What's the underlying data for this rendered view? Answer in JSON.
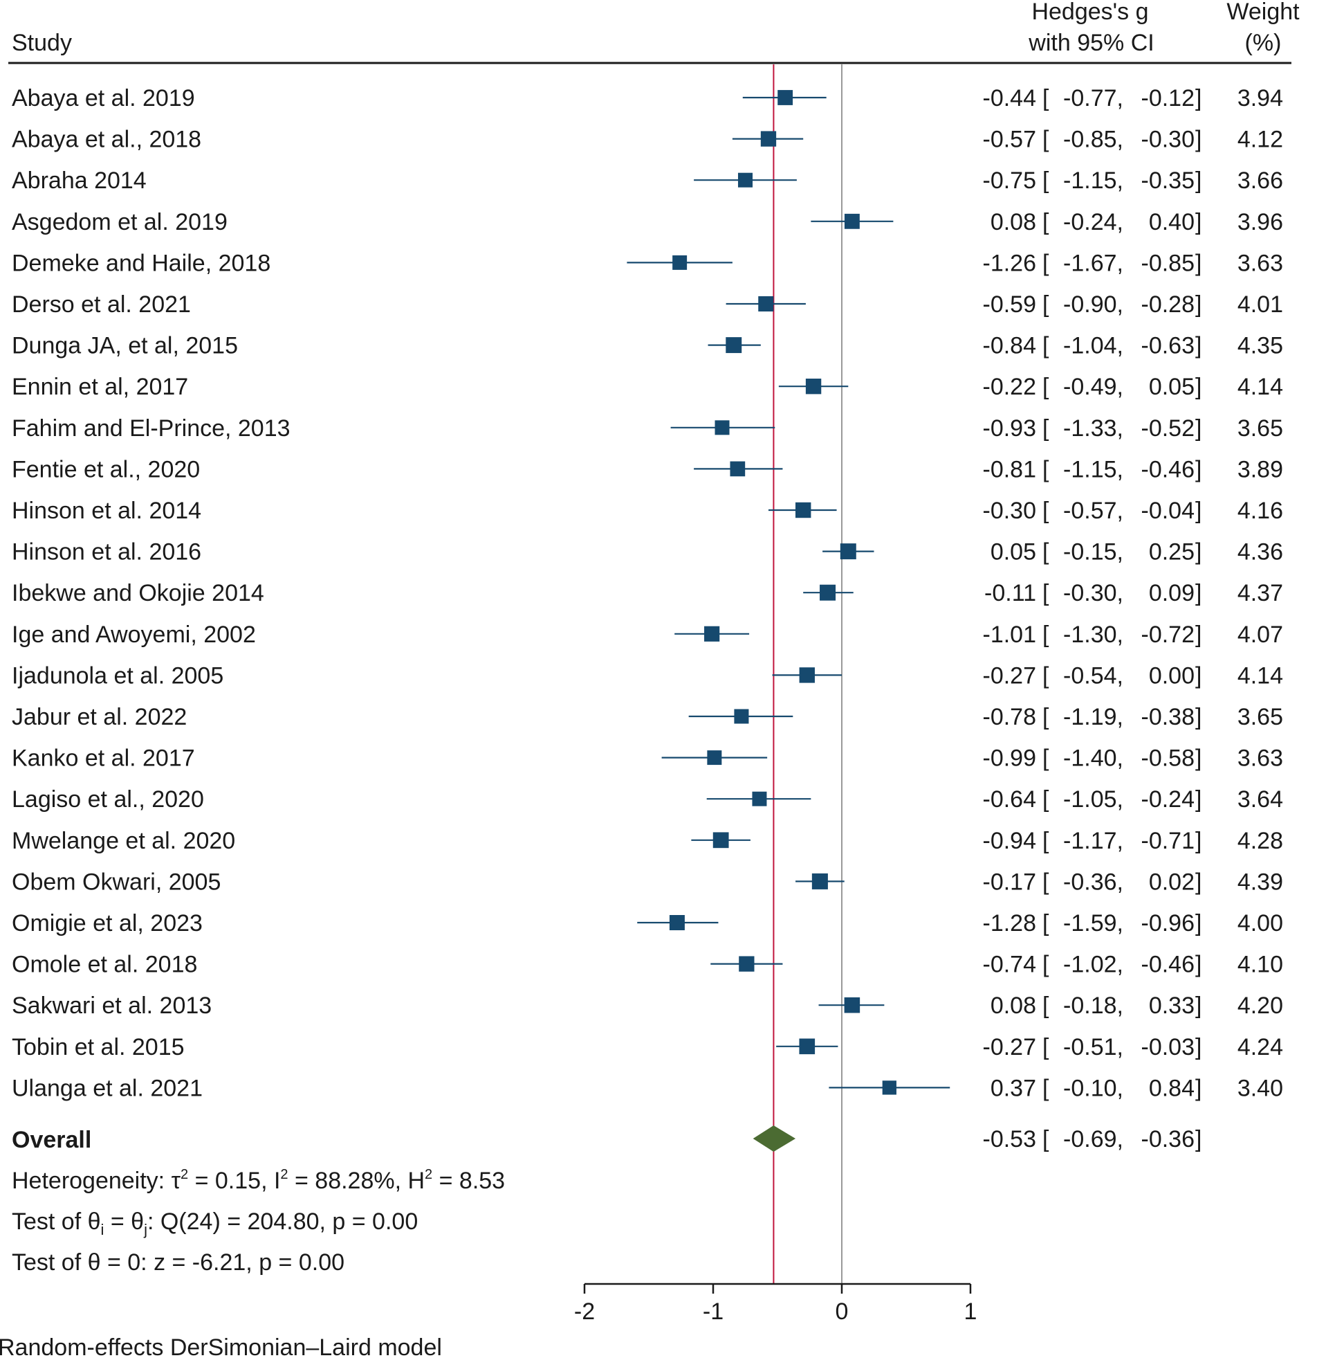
{
  "chart_data": {
    "type": "forest",
    "header": {
      "study": "Study",
      "effect_line1": "Hedges's g",
      "effect_line2": "with 95% CI",
      "weight_line1": "Weight",
      "weight_line2": "(%)"
    },
    "xlim": [
      -2,
      1
    ],
    "xticks": [
      -2,
      -1,
      0,
      1
    ],
    "xtick_labels": [
      "-2",
      "-1",
      "0",
      "1"
    ],
    "null_line": 0,
    "studies": [
      {
        "name": "Abaya et al. 2019",
        "g": -0.44,
        "lo": -0.77,
        "hi": -0.12,
        "weight": 3.94,
        "g_text": "-0.44",
        "lo_text": "-0.77",
        "hi_text": "-0.12",
        "weight_text": "3.94"
      },
      {
        "name": "Abaya et al., 2018",
        "g": -0.57,
        "lo": -0.85,
        "hi": -0.3,
        "weight": 4.12,
        "g_text": "-0.57",
        "lo_text": "-0.85",
        "hi_text": "-0.30",
        "weight_text": "4.12"
      },
      {
        "name": "Abraha 2014",
        "g": -0.75,
        "lo": -1.15,
        "hi": -0.35,
        "weight": 3.66,
        "g_text": "-0.75",
        "lo_text": "-1.15",
        "hi_text": "-0.35",
        "weight_text": "3.66"
      },
      {
        "name": "Asgedom et al. 2019",
        "g": 0.08,
        "lo": -0.24,
        "hi": 0.4,
        "weight": 3.96,
        "g_text": "0.08",
        "lo_text": "-0.24",
        "hi_text": "0.40",
        "weight_text": "3.96"
      },
      {
        "name": "Demeke and Haile, 2018",
        "g": -1.26,
        "lo": -1.67,
        "hi": -0.85,
        "weight": 3.63,
        "g_text": "-1.26",
        "lo_text": "-1.67",
        "hi_text": "-0.85",
        "weight_text": "3.63"
      },
      {
        "name": "Derso et al. 2021",
        "g": -0.59,
        "lo": -0.9,
        "hi": -0.28,
        "weight": 4.01,
        "g_text": "-0.59",
        "lo_text": "-0.90",
        "hi_text": "-0.28",
        "weight_text": "4.01"
      },
      {
        "name": "Dunga JA, et al, 2015",
        "g": -0.84,
        "lo": -1.04,
        "hi": -0.63,
        "weight": 4.35,
        "g_text": "-0.84",
        "lo_text": "-1.04",
        "hi_text": "-0.63",
        "weight_text": "4.35"
      },
      {
        "name": "Ennin et al, 2017",
        "g": -0.22,
        "lo": -0.49,
        "hi": 0.05,
        "weight": 4.14,
        "g_text": "-0.22",
        "lo_text": "-0.49",
        "hi_text": "0.05",
        "weight_text": "4.14"
      },
      {
        "name": "Fahim and El-Prince, 2013",
        "g": -0.93,
        "lo": -1.33,
        "hi": -0.52,
        "weight": 3.65,
        "g_text": "-0.93",
        "lo_text": "-1.33",
        "hi_text": "-0.52",
        "weight_text": "3.65"
      },
      {
        "name": "Fentie et al., 2020",
        "g": -0.81,
        "lo": -1.15,
        "hi": -0.46,
        "weight": 3.89,
        "g_text": "-0.81",
        "lo_text": "-1.15",
        "hi_text": "-0.46",
        "weight_text": "3.89"
      },
      {
        "name": "Hinson et al. 2014",
        "g": -0.3,
        "lo": -0.57,
        "hi": -0.04,
        "weight": 4.16,
        "g_text": "-0.30",
        "lo_text": "-0.57",
        "hi_text": "-0.04",
        "weight_text": "4.16"
      },
      {
        "name": "Hinson et al. 2016",
        "g": 0.05,
        "lo": -0.15,
        "hi": 0.25,
        "weight": 4.36,
        "g_text": "0.05",
        "lo_text": "-0.15",
        "hi_text": "0.25",
        "weight_text": "4.36"
      },
      {
        "name": "Ibekwe and Okojie 2014",
        "g": -0.11,
        "lo": -0.3,
        "hi": 0.09,
        "weight": 4.37,
        "g_text": "-0.11",
        "lo_text": "-0.30",
        "hi_text": "0.09",
        "weight_text": "4.37"
      },
      {
        "name": "Ige and Awoyemi, 2002",
        "g": -1.01,
        "lo": -1.3,
        "hi": -0.72,
        "weight": 4.07,
        "g_text": "-1.01",
        "lo_text": "-1.30",
        "hi_text": "-0.72",
        "weight_text": "4.07"
      },
      {
        "name": "Ijadunola et al. 2005",
        "g": -0.27,
        "lo": -0.54,
        "hi": 0.0,
        "weight": 4.14,
        "g_text": "-0.27",
        "lo_text": "-0.54",
        "hi_text": "0.00",
        "weight_text": "4.14"
      },
      {
        "name": "Jabur et al. 2022",
        "g": -0.78,
        "lo": -1.19,
        "hi": -0.38,
        "weight": 3.65,
        "g_text": "-0.78",
        "lo_text": "-1.19",
        "hi_text": "-0.38",
        "weight_text": "3.65"
      },
      {
        "name": "Kanko et al. 2017",
        "g": -0.99,
        "lo": -1.4,
        "hi": -0.58,
        "weight": 3.63,
        "g_text": "-0.99",
        "lo_text": "-1.40",
        "hi_text": "-0.58",
        "weight_text": "3.63"
      },
      {
        "name": "Lagiso et al., 2020",
        "g": -0.64,
        "lo": -1.05,
        "hi": -0.24,
        "weight": 3.64,
        "g_text": "-0.64",
        "lo_text": "-1.05",
        "hi_text": "-0.24",
        "weight_text": "3.64"
      },
      {
        "name": "Mwelange et al. 2020",
        "g": -0.94,
        "lo": -1.17,
        "hi": -0.71,
        "weight": 4.28,
        "g_text": "-0.94",
        "lo_text": "-1.17",
        "hi_text": "-0.71",
        "weight_text": "4.28"
      },
      {
        "name": "Obem Okwari, 2005",
        "g": -0.17,
        "lo": -0.36,
        "hi": 0.02,
        "weight": 4.39,
        "g_text": "-0.17",
        "lo_text": "-0.36",
        "hi_text": "0.02",
        "weight_text": "4.39"
      },
      {
        "name": "Omigie et al, 2023",
        "g": -1.28,
        "lo": -1.59,
        "hi": -0.96,
        "weight": 4.0,
        "g_text": "-1.28",
        "lo_text": "-1.59",
        "hi_text": "-0.96",
        "weight_text": "4.00"
      },
      {
        "name": "Omole et al. 2018",
        "g": -0.74,
        "lo": -1.02,
        "hi": -0.46,
        "weight": 4.1,
        "g_text": "-0.74",
        "lo_text": "-1.02",
        "hi_text": "-0.46",
        "weight_text": "4.10"
      },
      {
        "name": "Sakwari et al. 2013",
        "g": 0.08,
        "lo": -0.18,
        "hi": 0.33,
        "weight": 4.2,
        "g_text": "0.08",
        "lo_text": "-0.18",
        "hi_text": "0.33",
        "weight_text": "4.20"
      },
      {
        "name": "Tobin et al. 2015",
        "g": -0.27,
        "lo": -0.51,
        "hi": -0.03,
        "weight": 4.24,
        "g_text": "-0.27",
        "lo_text": "-0.51",
        "hi_text": "-0.03",
        "weight_text": "4.24"
      },
      {
        "name": "Ulanga et al. 2021",
        "g": 0.37,
        "lo": -0.1,
        "hi": 0.84,
        "weight": 3.4,
        "g_text": "0.37",
        "lo_text": "-0.10",
        "hi_text": "0.84",
        "weight_text": "3.40"
      }
    ],
    "overall": {
      "name": "Overall",
      "g": -0.53,
      "lo": -0.69,
      "hi": -0.36,
      "g_text": "-0.53",
      "lo_text": "-0.69",
      "hi_text": "-0.36"
    },
    "heterogeneity": {
      "prefix": "Heterogeneity: τ",
      "sup": "2",
      "tau2": " = 0.15, I",
      "i2": " = 88.28%, H",
      "h2": " = 8.53"
    },
    "test_q": {
      "prefix": "Test of θ",
      "sub_i": "i",
      "mid": " = θ",
      "sub_j": "j",
      "suffix": ": Q(24) = 204.80, p = 0.00"
    },
    "test_theta": "Test of θ = 0: z = -6.21, p = 0.00",
    "footnote": "Random-effects DerSimonian–Laird model",
    "colors": {
      "marker": "#16496e",
      "ci_line": "#16496e",
      "diamond": "#4b6b32",
      "overall_line": "#c0143c",
      "null_line": "#999999",
      "axis": "#1a1a1a"
    }
  }
}
